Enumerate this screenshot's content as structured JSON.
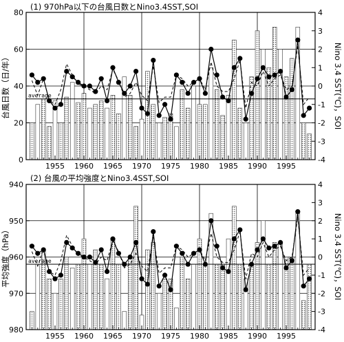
{
  "chart_data": [
    {
      "type": "bar",
      "title": "(1) 970hPa以下の台風日数とNino3.4SST,SOI",
      "ylabel": "台風日数（日/年）",
      "y2label": "Nino 3.4 SST(℃)，SOI",
      "ylim": [
        0,
        80
      ],
      "yticks": [
        0,
        20,
        40,
        60,
        80
      ],
      "y2lim": [
        -4,
        4
      ],
      "y2ticks": [
        -4,
        -3,
        -2,
        -1,
        0,
        1,
        2,
        3,
        4
      ],
      "xlim": [
        1950,
        2000
      ],
      "xticks": [
        1955,
        1960,
        1965,
        1970,
        1975,
        1980,
        1985,
        1990,
        1995
      ],
      "average_label": "average",
      "average_value": 33,
      "grid": true,
      "x": [
        1951,
        1952,
        1953,
        1954,
        1955,
        1956,
        1957,
        1958,
        1959,
        1960,
        1961,
        1962,
        1963,
        1964,
        1965,
        1966,
        1967,
        1968,
        1969,
        1970,
        1971,
        1972,
        1973,
        1974,
        1975,
        1976,
        1977,
        1978,
        1979,
        1980,
        1981,
        1982,
        1983,
        1984,
        1985,
        1986,
        1987,
        1988,
        1989,
        1990,
        1991,
        1992,
        1993,
        1994,
        1995,
        1996,
        1997,
        1998,
        1999
      ],
      "series": [
        {
          "values": [
            20,
            30,
            33,
            18,
            32,
            20,
            34,
            42,
            31,
            36,
            28,
            30,
            32,
            28,
            35,
            25,
            45,
            35,
            18,
            22,
            48,
            30,
            20,
            23,
            25,
            18,
            38,
            28,
            40,
            30,
            30,
            50,
            38,
            24,
            35,
            65,
            28,
            20,
            45,
            70,
            60,
            50,
            72,
            60,
            45,
            55,
            72,
            20,
            14
          ]
        },
        {
          "values": [
            0.6,
            0.2,
            0.4,
            -0.8,
            -1.2,
            -1.0,
            0.8,
            0.5,
            0.2,
            0.0,
            0.0,
            -0.3,
            0.4,
            -0.8,
            1.0,
            0.2,
            -0.4,
            0.0,
            0.8,
            -1.2,
            -1.5,
            1.4,
            -1.6,
            -1.0,
            -1.8,
            0.6,
            0.2,
            -0.4,
            0.2,
            0.4,
            -0.4,
            2.0,
            0.6,
            -0.6,
            -0.8,
            1.0,
            1.5,
            -1.8,
            -0.4,
            0.4,
            1.0,
            0.5,
            0.6,
            0.8,
            -0.6,
            -0.2,
            2.5,
            -1.6,
            -1.2
          ]
        },
        {
          "values": [
            0.3,
            -0.5,
            0.4,
            -0.8,
            -1.0,
            -0.2,
            1.2,
            0.6,
            0.1,
            0.0,
            -0.2,
            -0.4,
            0.0,
            -0.2,
            0.9,
            0.3,
            -0.6,
            -0.4,
            0.2,
            -0.5,
            -0.8,
            1.1,
            -0.9,
            -0.6,
            -0.6,
            0.6,
            0.4,
            0.0,
            0.2,
            0.4,
            -0.2,
            1.3,
            0.0,
            -0.3,
            -0.3,
            0.4,
            1.4,
            -1.2,
            0.2,
            0.0,
            0.8,
            0.0,
            0.4,
            0.6,
            -0.2,
            0.0,
            2.2,
            -1.0,
            -0.6
          ]
        }
      ]
    },
    {
      "type": "bar",
      "title": "(2) 台風の平均強度とNino3.4SST,SOI",
      "ylabel": "平均強度（hPa）",
      "y2label": "Nino 3.4 SST(℃)，SOI",
      "ylim": [
        980,
        940
      ],
      "yticks": [
        940,
        950,
        960,
        970,
        980
      ],
      "y2lim": [
        -4,
        4
      ],
      "y2ticks": [
        -4,
        -3,
        -2,
        -1,
        0,
        1,
        2,
        3,
        4
      ],
      "xlim": [
        1950,
        2000
      ],
      "xticks": [
        1955,
        1960,
        1965,
        1970,
        1975,
        1980,
        1985,
        1990,
        1995
      ],
      "average_label": "average",
      "average_value": 962,
      "grid": true,
      "x": [
        1951,
        1952,
        1953,
        1954,
        1955,
        1956,
        1957,
        1958,
        1959,
        1960,
        1961,
        1962,
        1963,
        1964,
        1965,
        1966,
        1967,
        1968,
        1969,
        1970,
        1971,
        1972,
        1973,
        1974,
        1975,
        1976,
        1977,
        1978,
        1979,
        1980,
        1981,
        1982,
        1983,
        1984,
        1985,
        1986,
        1987,
        1988,
        1989,
        1990,
        1991,
        1992,
        1993,
        1994,
        1995,
        1996,
        1997,
        1998,
        1999
      ],
      "series": [
        {
          "values": [
            975,
            962,
            958,
            966,
            970,
            966,
            960,
            963,
            962,
            955,
            962,
            958,
            962,
            966,
            955,
            962,
            975,
            960,
            946,
            976,
            958,
            956,
            970,
            966,
            966,
            974,
            960,
            966,
            962,
            955,
            962,
            948,
            962,
            962,
            955,
            946,
            962,
            966,
            962,
            956,
            950,
            962,
            956,
            956,
            960,
            960,
            948,
            972,
            962
          ]
        },
        {
          "values": [
            0.6,
            0.2,
            0.4,
            -0.8,
            -1.2,
            -1.0,
            0.8,
            0.5,
            0.2,
            0.0,
            0.0,
            -0.3,
            0.4,
            -0.8,
            1.0,
            0.2,
            -0.4,
            0.0,
            0.8,
            -1.2,
            -1.5,
            1.4,
            -1.6,
            -1.0,
            -1.8,
            0.6,
            0.2,
            -0.4,
            0.2,
            0.4,
            -0.4,
            2.0,
            0.6,
            -0.6,
            -0.8,
            1.0,
            1.5,
            -1.8,
            -0.4,
            0.4,
            1.0,
            0.5,
            0.6,
            0.8,
            -0.6,
            -0.2,
            2.5,
            -1.6,
            -1.2
          ]
        },
        {
          "values": [
            0.3,
            -0.5,
            0.4,
            -0.8,
            -1.0,
            -0.2,
            1.2,
            0.6,
            0.1,
            0.0,
            -0.2,
            -0.4,
            0.0,
            -0.2,
            0.9,
            0.3,
            -0.6,
            -0.4,
            0.2,
            -0.5,
            -0.8,
            1.1,
            -0.9,
            -0.6,
            -0.6,
            0.6,
            0.4,
            0.0,
            0.2,
            0.4,
            -0.2,
            1.3,
            0.0,
            -0.3,
            -0.3,
            0.4,
            1.4,
            -1.2,
            0.2,
            0.0,
            0.8,
            0.0,
            0.4,
            0.6,
            -0.2,
            0.0,
            2.2,
            -1.0,
            -0.6
          ]
        }
      ]
    }
  ]
}
